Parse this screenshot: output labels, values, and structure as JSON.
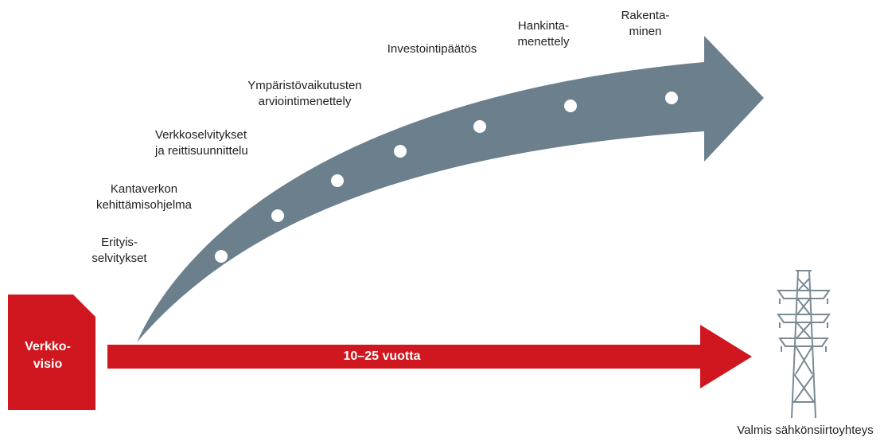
{
  "start": {
    "lines": [
      "Verkko-",
      "visio"
    ]
  },
  "duration": "10–25 vuotta",
  "steps": [
    {
      "lines": [
        "Erityis-",
        "selvitykset"
      ]
    },
    {
      "lines": [
        "Kantaverkon",
        "kehittämisohjelma"
      ]
    },
    {
      "lines": [
        "Verkkoselvitykset",
        "ja reittisuunnittelu"
      ]
    },
    {
      "lines": [
        "Ympäristövaikutusten",
        "arviointimenettely"
      ]
    },
    {
      "lines": [
        "Investointipäätös"
      ]
    },
    {
      "lines": [
        "Hankinta-",
        "menettely"
      ]
    },
    {
      "lines": [
        "Rakenta-",
        "minen"
      ]
    }
  ],
  "end": "Valmis sähkönsiirtoyhteys"
}
